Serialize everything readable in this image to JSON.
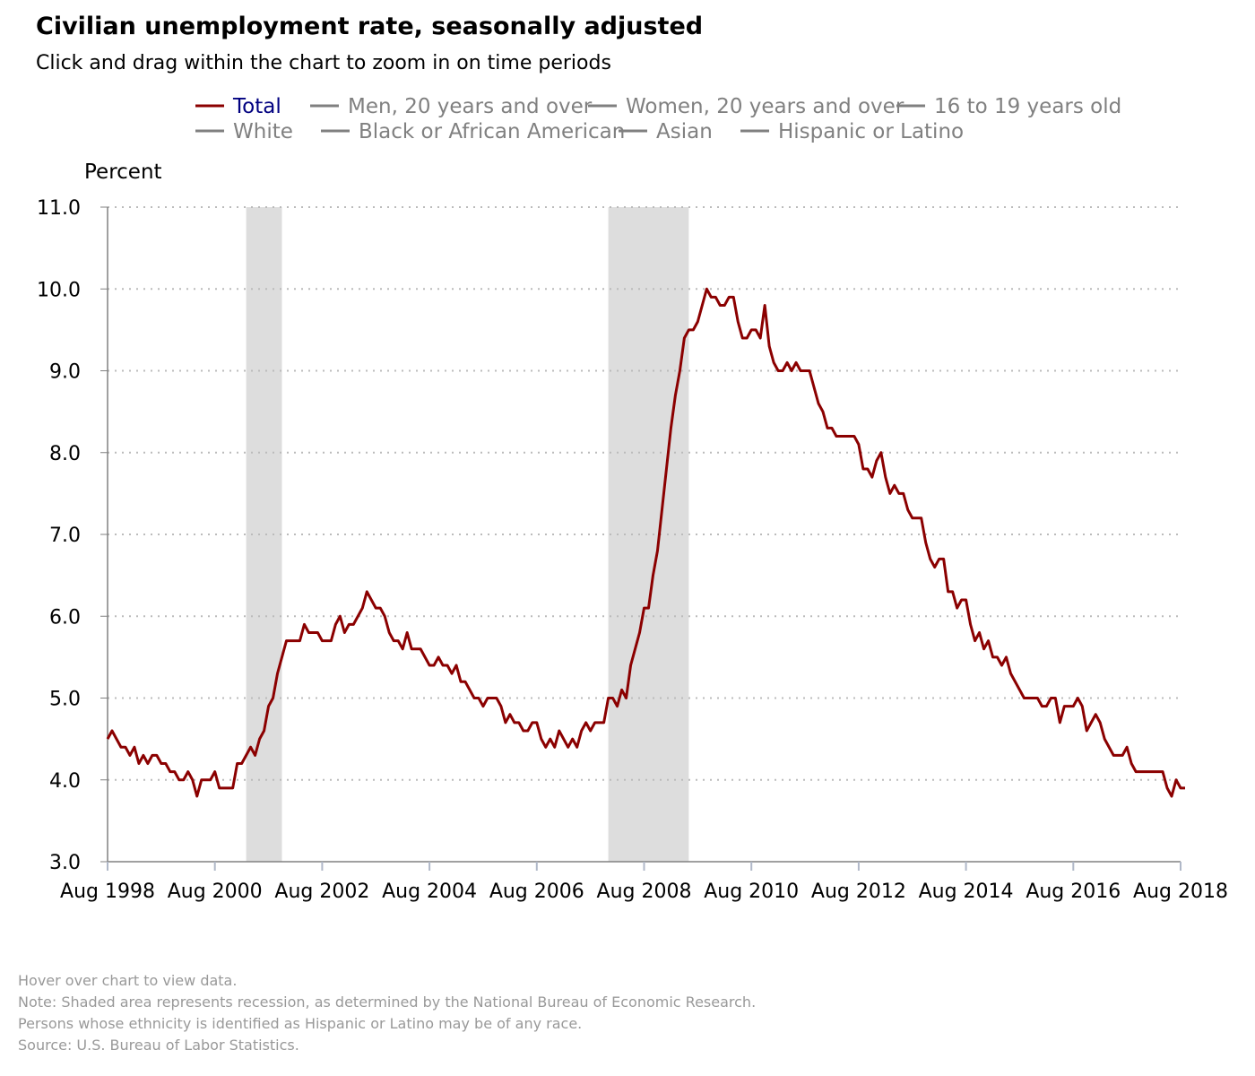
{
  "header": {
    "title": "Civilian unemployment rate, seasonally adjusted",
    "subtitle": "Click and drag within the chart to zoom in on time periods"
  },
  "colors": {
    "total_series": "#8b0000",
    "inactive_series": "#808080",
    "active_legend_text": "#000080",
    "recession_shade": "#dddddd",
    "footnote_text": "#999999",
    "gridline": "#bbbbbb"
  },
  "legend": [
    {
      "label": "Total",
      "active": true
    },
    {
      "label": "Men, 20 years and over",
      "active": false
    },
    {
      "label": "Women, 20 years and over",
      "active": false
    },
    {
      "label": "16 to 19 years old",
      "active": false
    },
    {
      "label": "White",
      "active": false
    },
    {
      "label": "Black or African American",
      "active": false
    },
    {
      "label": "Asian",
      "active": false
    },
    {
      "label": "Hispanic or Latino",
      "active": false
    }
  ],
  "chart_data": {
    "type": "line",
    "title": "Civilian unemployment rate, seasonally adjusted",
    "ylabel": "Percent",
    "xlabel": "",
    "ylim": [
      3.0,
      11.0
    ],
    "yticks": [
      "3.0",
      "4.0",
      "5.0",
      "6.0",
      "7.0",
      "8.0",
      "9.0",
      "10.0",
      "11.0"
    ],
    "xlim": [
      "1998-08",
      "2018-08"
    ],
    "xticks": [
      "Aug 1998",
      "Aug 2000",
      "Aug 2002",
      "Aug 2004",
      "Aug 2006",
      "Aug 2008",
      "Aug 2010",
      "Aug 2012",
      "Aug 2014",
      "Aug 2016",
      "Aug 2018"
    ],
    "grid": "horizontal dotted",
    "legend_position": "top",
    "recessions": [
      {
        "start": "2001-03",
        "end": "2001-11"
      },
      {
        "start": "2007-12",
        "end": "2009-06"
      }
    ],
    "series": [
      {
        "name": "Total",
        "start": "1998-08",
        "frequency": "monthly",
        "values": [
          4.5,
          4.6,
          4.5,
          4.4,
          4.4,
          4.3,
          4.4,
          4.2,
          4.3,
          4.2,
          4.3,
          4.3,
          4.2,
          4.2,
          4.1,
          4.1,
          4.0,
          4.0,
          4.1,
          4.0,
          3.8,
          4.0,
          4.0,
          4.0,
          4.1,
          3.9,
          3.9,
          3.9,
          3.9,
          4.2,
          4.2,
          4.3,
          4.4,
          4.3,
          4.5,
          4.6,
          4.9,
          5.0,
          5.3,
          5.5,
          5.7,
          5.7,
          5.7,
          5.7,
          5.9,
          5.8,
          5.8,
          5.8,
          5.7,
          5.7,
          5.7,
          5.9,
          6.0,
          5.8,
          5.9,
          5.9,
          6.0,
          6.1,
          6.3,
          6.2,
          6.1,
          6.1,
          6.0,
          5.8,
          5.7,
          5.7,
          5.6,
          5.8,
          5.6,
          5.6,
          5.6,
          5.5,
          5.4,
          5.4,
          5.5,
          5.4,
          5.4,
          5.3,
          5.4,
          5.2,
          5.2,
          5.1,
          5.0,
          5.0,
          4.9,
          5.0,
          5.0,
          5.0,
          4.9,
          4.7,
          4.8,
          4.7,
          4.7,
          4.6,
          4.6,
          4.7,
          4.7,
          4.5,
          4.4,
          4.5,
          4.4,
          4.6,
          4.5,
          4.4,
          4.5,
          4.4,
          4.6,
          4.7,
          4.6,
          4.7,
          4.7,
          4.7,
          5.0,
          5.0,
          4.9,
          5.1,
          5.0,
          5.4,
          5.6,
          5.8,
          6.1,
          6.1,
          6.5,
          6.8,
          7.3,
          7.8,
          8.3,
          8.7,
          9.0,
          9.4,
          9.5,
          9.5,
          9.6,
          9.8,
          10.0,
          9.9,
          9.9,
          9.8,
          9.8,
          9.9,
          9.9,
          9.6,
          9.4,
          9.4,
          9.5,
          9.5,
          9.4,
          9.8,
          9.3,
          9.1,
          9.0,
          9.0,
          9.1,
          9.0,
          9.1,
          9.0,
          9.0,
          9.0,
          8.8,
          8.6,
          8.5,
          8.3,
          8.3,
          8.2,
          8.2,
          8.2,
          8.2,
          8.2,
          8.1,
          7.8,
          7.8,
          7.7,
          7.9,
          8.0,
          7.7,
          7.5,
          7.6,
          7.5,
          7.5,
          7.3,
          7.2,
          7.2,
          7.2,
          6.9,
          6.7,
          6.6,
          6.7,
          6.7,
          6.3,
          6.3,
          6.1,
          6.2,
          6.2,
          5.9,
          5.7,
          5.8,
          5.6,
          5.7,
          5.5,
          5.5,
          5.4,
          5.5,
          5.3,
          5.2,
          5.1,
          5.0,
          5.0,
          5.0,
          5.0,
          4.9,
          4.9,
          5.0,
          5.0,
          4.7,
          4.9,
          4.9,
          4.9,
          5.0,
          4.9,
          4.6,
          4.7,
          4.8,
          4.7,
          4.5,
          4.4,
          4.3,
          4.3,
          4.3,
          4.4,
          4.2,
          4.1,
          4.1,
          4.1,
          4.1,
          4.1,
          4.1,
          4.1,
          3.9,
          3.8,
          4.0,
          3.9,
          3.9
        ]
      }
    ]
  },
  "footnotes": [
    "Hover over chart to view data.",
    "Note: Shaded area represents recession, as determined by the National Bureau of Economic Research.",
    "Persons whose ethnicity is identified as Hispanic or Latino may be of any race.",
    "Source: U.S. Bureau of Labor Statistics."
  ]
}
